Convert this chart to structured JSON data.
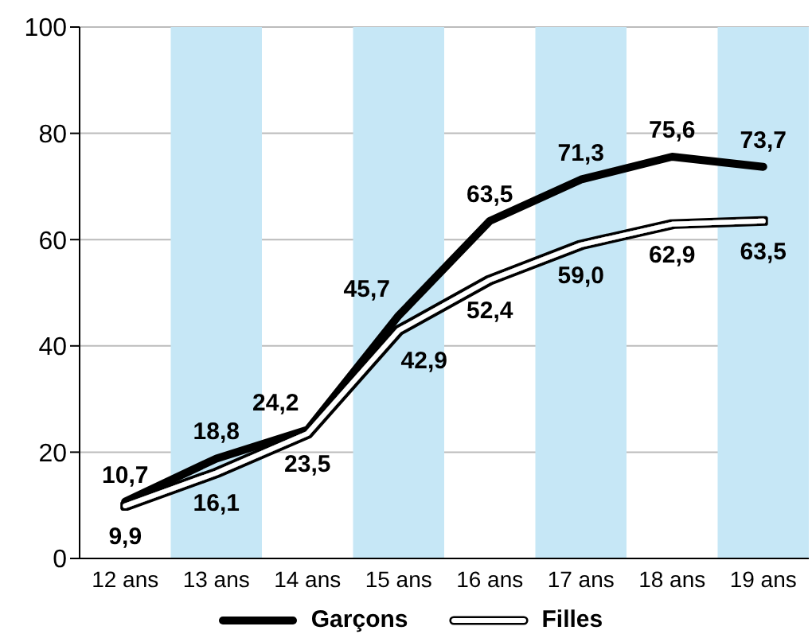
{
  "chart_data": {
    "type": "line",
    "categories": [
      "12 ans",
      "13 ans",
      "14 ans",
      "15 ans",
      "16 ans",
      "17 ans",
      "18 ans",
      "19 ans"
    ],
    "series": [
      {
        "name": "Garçons",
        "color": "#000000",
        "values": [
          10.7,
          18.8,
          24.2,
          45.7,
          63.5,
          71.3,
          75.6,
          73.7
        ],
        "value_labels": [
          "10,7",
          "18,8",
          "24,2",
          "45,7",
          "63,5",
          "71,3",
          "75,6",
          "73,7"
        ]
      },
      {
        "name": "Filles",
        "color": "#ffffff",
        "values": [
          9.9,
          16.1,
          23.5,
          42.9,
          52.4,
          59.0,
          62.9,
          63.5
        ],
        "value_labels": [
          "9,9",
          "16,1",
          "23,5",
          "42,9",
          "52,4",
          "59,0",
          "62,9",
          "63,5"
        ]
      }
    ],
    "ylim": [
      0,
      100
    ],
    "yticks": [
      0,
      20,
      40,
      60,
      80,
      100
    ],
    "bands": [
      {
        "axis": "x",
        "from": "13 ans",
        "to": "13 ans",
        "color": "#c6e7f6"
      },
      {
        "axis": "x",
        "from": "15 ans",
        "to": "15 ans",
        "color": "#c6e7f6"
      },
      {
        "axis": "x",
        "from": "17 ans",
        "to": "17 ans",
        "color": "#c6e7f6"
      },
      {
        "axis": "x",
        "from": "19 ans",
        "to": "19 ans",
        "color": "#c6e7f6"
      }
    ],
    "grid": "y",
    "legend": "bottom",
    "marker": "none",
    "line_style": "solid"
  }
}
